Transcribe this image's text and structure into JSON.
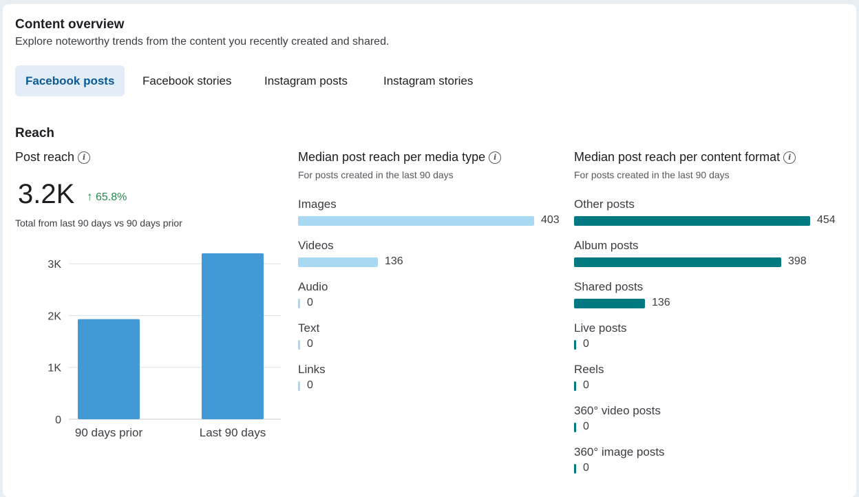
{
  "header": {
    "title": "Content overview",
    "subtitle": "Explore noteworthy trends from the content you recently created and shared."
  },
  "tabs": [
    {
      "label": "Facebook posts",
      "active": true
    },
    {
      "label": "Facebook stories",
      "active": false
    },
    {
      "label": "Instagram posts",
      "active": false
    },
    {
      "label": "Instagram stories",
      "active": false
    }
  ],
  "reach": {
    "section_title": "Reach",
    "post_reach": {
      "title": "Post reach",
      "value": "3.2K",
      "delta": "65.8%",
      "delta_direction": "up",
      "note": "Total from last 90 days vs 90 days prior"
    },
    "media_type": {
      "title": "Median post reach per media type",
      "subtitle": "For posts created in the last 90 days",
      "bar_color": "#a8d8f2",
      "max": 403,
      "rows": [
        {
          "label": "Images",
          "value": 403
        },
        {
          "label": "Videos",
          "value": 136
        },
        {
          "label": "Audio",
          "value": 0
        },
        {
          "label": "Text",
          "value": 0
        },
        {
          "label": "Links",
          "value": 0
        }
      ]
    },
    "content_format": {
      "title": "Median post reach per content format",
      "subtitle": "For posts created in the last 90 days",
      "bar_color": "#007a80",
      "max": 454,
      "rows": [
        {
          "label": "Other posts",
          "value": 454
        },
        {
          "label": "Album posts",
          "value": 398
        },
        {
          "label": "Shared posts",
          "value": 136
        },
        {
          "label": "Live posts",
          "value": 0
        },
        {
          "label": "Reels",
          "value": 0
        },
        {
          "label": "360° video posts",
          "value": 0
        },
        {
          "label": "360° image posts",
          "value": 0
        }
      ]
    }
  },
  "chart_data": {
    "type": "bar",
    "categories": [
      "90 days prior",
      "Last 90 days"
    ],
    "values": [
      1930,
      3200
    ],
    "yticks": [
      "0",
      "1K",
      "2K",
      "3K"
    ],
    "ytick_values": [
      0,
      1000,
      2000,
      3000
    ],
    "ylim": [
      0,
      3200
    ],
    "bar_color": "#4399d6",
    "grid": true
  }
}
